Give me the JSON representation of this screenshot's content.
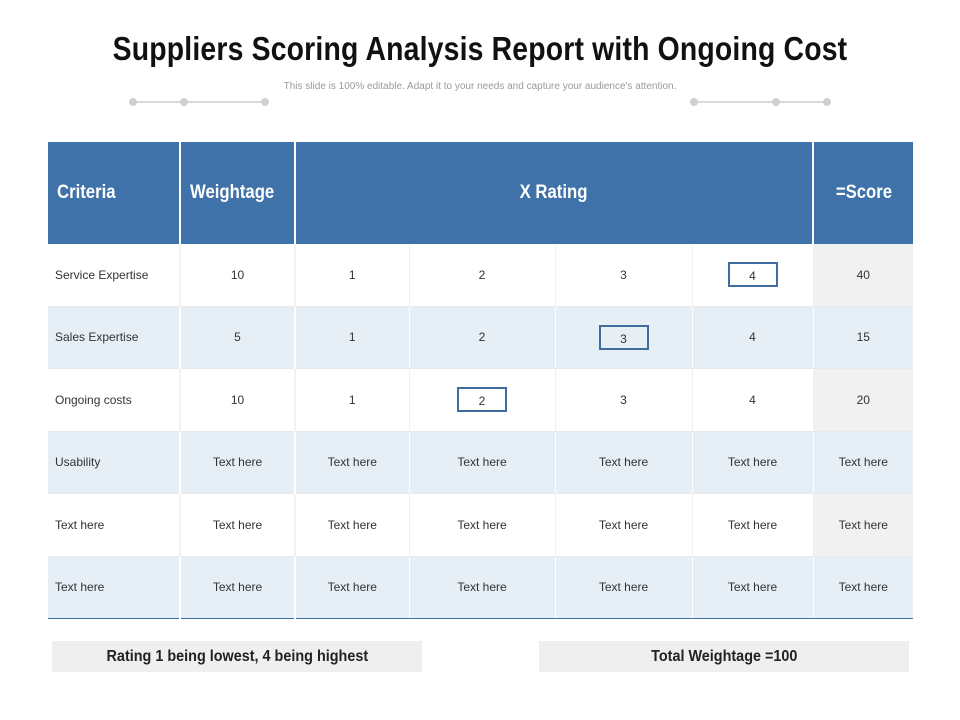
{
  "title": "Suppliers Scoring Analysis Report with Ongoing Cost",
  "subtitle": "This slide is 100% editable. Adapt it to your needs and capture your audience's attention.",
  "table": {
    "headers": {
      "criteria": "Criteria",
      "weightage": "Weightage",
      "rating": "X Rating",
      "score": "=Score"
    },
    "rows": [
      {
        "criteria": "Service Expertise",
        "weightage": "10",
        "r1": "1",
        "r2": "2",
        "r3": "3",
        "r4": "4",
        "score": "40",
        "selected": 4
      },
      {
        "criteria": "Sales Expertise",
        "weightage": "5",
        "r1": "1",
        "r2": "2",
        "r3": "3",
        "r4": "4",
        "score": "15",
        "selected": 3
      },
      {
        "criteria": "Ongoing costs",
        "weightage": "10",
        "r1": "1",
        "r2": "2",
        "r3": "3",
        "r4": "4",
        "score": "20",
        "selected": 2
      },
      {
        "criteria": "Usability",
        "weightage": "Text here",
        "r1": "Text here",
        "r2": "Text here",
        "r3": "Text here",
        "r4": "Text here",
        "score": "Text here"
      },
      {
        "criteria": "Text here",
        "weightage": "Text here",
        "r1": "Text here",
        "r2": "Text here",
        "r3": "Text here",
        "r4": "Text here",
        "score": "Text here"
      },
      {
        "criteria": "Text here",
        "weightage": "Text here",
        "r1": "Text here",
        "r2": "Text here",
        "r3": "Text here",
        "r4": "Text here",
        "score": "Text here"
      }
    ]
  },
  "notes": {
    "left": "Rating 1 being lowest, 4 being highest",
    "right": "Total Weightage =100"
  },
  "colors": {
    "header_bg": "#3f72a8",
    "highlight_border": "#3e6d9e",
    "alt_row_bg": "#e6eef6",
    "score_bg": "#f1f1f1"
  }
}
